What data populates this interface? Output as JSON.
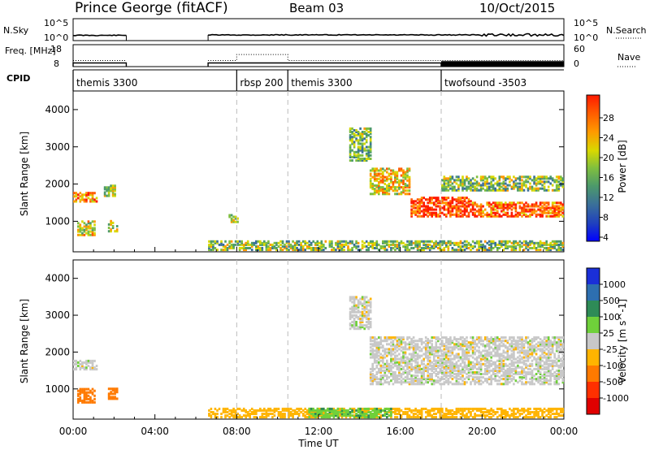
{
  "header": {
    "station": "Prince George (fitACF)",
    "beam": "Beam 03",
    "date": "10/Oct/2015"
  },
  "colors": {
    "power_scale": [
      "#0000ff",
      "#1f3fbf",
      "#3a6f9a",
      "#4d9a6a",
      "#7fbf3f",
      "#d8d800",
      "#ff9900",
      "#ff5a00",
      "#ff1a00"
    ],
    "velocity_scale": [
      "#1a2fd8",
      "#2d6fb0",
      "#2e8b57",
      "#6fd03a",
      "#c8c8c8",
      "#ffb400",
      "#ff7a00",
      "#ff3000",
      "#e00000"
    ],
    "ground_scatter": "#c8c8c8"
  },
  "chart_data": [
    {
      "type": "line",
      "name": "nsky-nsearch-panel",
      "left_label": "N.Sky",
      "right_label": "N.Search",
      "left_ticks": [
        "10^5",
        "10^0"
      ],
      "right_ticks": [
        "10^5",
        "10^0"
      ],
      "segments": [
        {
          "x": [
            0.0,
            2.6
          ],
          "y": 1.2
        },
        {
          "x": [
            6.6,
            24.0
          ],
          "y": 1.3
        }
      ]
    },
    {
      "type": "line",
      "name": "freq-nave-panel",
      "left_label": "Freq. [MHz]",
      "left_ticks": [
        "18",
        "8"
      ],
      "right_label": "Nave",
      "right_ticks": [
        "60",
        "0"
      ],
      "freq_segments": [
        {
          "x": [
            0.0,
            2.6
          ],
          "y": 10.8
        },
        {
          "x": [
            6.6,
            8.0
          ],
          "y": 10.8
        },
        {
          "x": [
            8.0,
            10.5
          ],
          "y": 13.5
        },
        {
          "x": [
            10.5,
            24.0
          ],
          "y": 10.8
        }
      ],
      "nave_segments": [
        {
          "x": [
            0.0,
            2.6
          ],
          "y": 10
        },
        {
          "x": [
            6.6,
            18.0
          ],
          "y": 10
        },
        {
          "x": [
            18.0,
            24.0
          ],
          "y": 15
        }
      ]
    },
    {
      "type": "table",
      "name": "cpid-strip",
      "label": "CPID",
      "entries": [
        {
          "start": 0.0,
          "text": "themis 3300"
        },
        {
          "start": 8.0,
          "text": "rbsp 200"
        },
        {
          "start": 10.5,
          "text": "themis 3300"
        },
        {
          "start": 18.0,
          "text": "twofsound -3503"
        }
      ]
    },
    {
      "type": "heatmap",
      "name": "power",
      "xlabel": "",
      "ylabel": "Slant Range [km]",
      "colorbar_label": "Power [dB]",
      "colorbar_ticks": [
        "28",
        "24",
        "20",
        "16",
        "12",
        "8",
        "4"
      ],
      "xlim": [
        0,
        24
      ],
      "ylim": [
        180,
        4500
      ],
      "yticks": [
        "4000",
        "3000",
        "2000",
        "1000"
      ],
      "regions": [
        {
          "t0": 0.0,
          "t1": 1.2,
          "r0": 1500,
          "r1": 1750,
          "level": 0.75
        },
        {
          "t0": 1.5,
          "t1": 2.1,
          "r0": 1650,
          "r1": 1950,
          "level": 0.55
        },
        {
          "t0": 0.2,
          "t1": 1.0,
          "r0": 600,
          "r1": 1000,
          "level": 0.6
        },
        {
          "t0": 1.7,
          "t1": 2.2,
          "r0": 700,
          "r1": 1000,
          "level": 0.55
        },
        {
          "t0": 7.6,
          "t1": 8.0,
          "r0": 950,
          "r1": 1150,
          "level": 0.55
        },
        {
          "t0": 6.6,
          "t1": 24.0,
          "r0": 200,
          "r1": 450,
          "level": 0.5
        },
        {
          "t0": 13.5,
          "t1": 14.5,
          "r0": 2600,
          "r1": 3500,
          "level": 0.45
        },
        {
          "t0": 14.5,
          "t1": 16.5,
          "r0": 1700,
          "r1": 2400,
          "level": 0.65
        },
        {
          "t0": 16.5,
          "t1": 19.5,
          "r0": 1100,
          "r1": 1600,
          "level": 0.9
        },
        {
          "t0": 19.5,
          "t1": 24.0,
          "r0": 1100,
          "r1": 1500,
          "level": 0.85
        },
        {
          "t0": 18.0,
          "t1": 24.0,
          "r0": 1800,
          "r1": 2200,
          "level": 0.5
        }
      ]
    },
    {
      "type": "heatmap",
      "name": "velocity",
      "xlabel": "Time UT",
      "ylabel": "Slant Range [km]",
      "colorbar_label": "Velocity [m s^-1]",
      "colorbar_ticks": [
        "1000",
        "500",
        "100",
        "25",
        "-25",
        "-100",
        "-500",
        "-1000"
      ],
      "xlim": [
        0,
        24
      ],
      "ylim": [
        180,
        4500
      ],
      "yticks": [
        "4000",
        "3000",
        "2000",
        "1000"
      ],
      "xticks": [
        "00:00",
        "04:00",
        "08:00",
        "12:00",
        "16:00",
        "20:00",
        "00:00"
      ],
      "regions": [
        {
          "t0": 0.0,
          "t1": 1.2,
          "r0": 1500,
          "r1": 1750,
          "value": 0
        },
        {
          "t0": 0.2,
          "t1": 1.0,
          "r0": 600,
          "r1": 1000,
          "value": -300
        },
        {
          "t0": 1.7,
          "t1": 2.2,
          "r0": 700,
          "r1": 1000,
          "value": -300
        },
        {
          "t0": 6.6,
          "t1": 24.0,
          "r0": 200,
          "r1": 450,
          "value": -60
        },
        {
          "t0": 11.5,
          "t1": 15.5,
          "r0": 200,
          "r1": 450,
          "value": 80
        },
        {
          "t0": 14.5,
          "t1": 24.0,
          "r0": 1100,
          "r1": 2400,
          "value": 0
        },
        {
          "t0": 13.5,
          "t1": 14.5,
          "r0": 2600,
          "r1": 3500,
          "value": 0
        }
      ]
    }
  ]
}
